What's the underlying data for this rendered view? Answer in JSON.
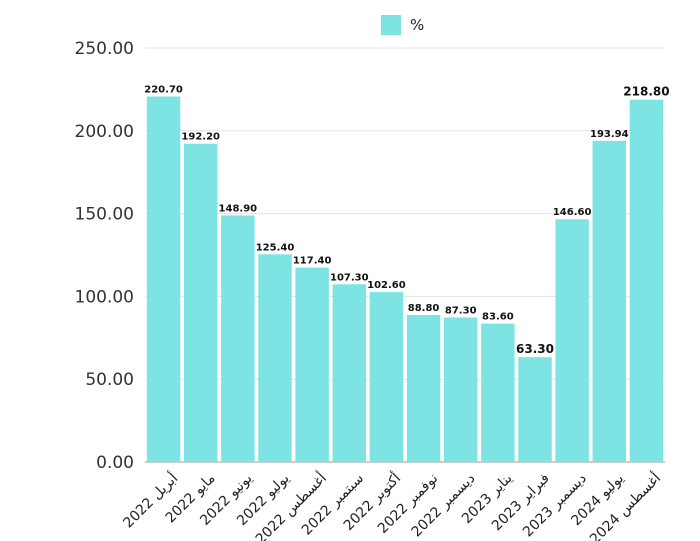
{
  "legend": {
    "label": "%",
    "color": "#7DE3E3"
  },
  "chart_data": {
    "type": "bar",
    "categories": [
      "أبريل 2022",
      "مايو 2022",
      "يونيو 2022",
      "يوليو 2022",
      "أغسطس 2022",
      "سبتمبر 2022",
      "أكتوبر 2022",
      "نوفمبر 2022",
      "ديسمبر 2022",
      "يناير 2023",
      "فبراير 2023",
      "ديسمبر 2023",
      "يوليو 2024",
      "أغسطس 2024"
    ],
    "series": [
      {
        "name": "%",
        "values": [
          220.7,
          192.2,
          148.9,
          125.4,
          117.4,
          107.3,
          102.6,
          88.8,
          87.3,
          83.6,
          63.3,
          146.6,
          193.94,
          218.8
        ]
      }
    ],
    "data_labels": [
      "220.70",
      "192.20",
      "148.90",
      "125.40",
      "117.40",
      "107.30",
      "102.60",
      "88.80",
      "87.30",
      "83.60",
      "63.30",
      "146.60",
      "193.94",
      "218.80"
    ],
    "yticks": [
      "0.00",
      "50.00",
      "100.00",
      "150.00",
      "200.00",
      "250.00"
    ],
    "ylim": [
      0,
      250
    ],
    "grid": true,
    "legend_position": "top",
    "bar_color": "#7DE3E3",
    "title": "",
    "xlabel": "",
    "ylabel": ""
  }
}
